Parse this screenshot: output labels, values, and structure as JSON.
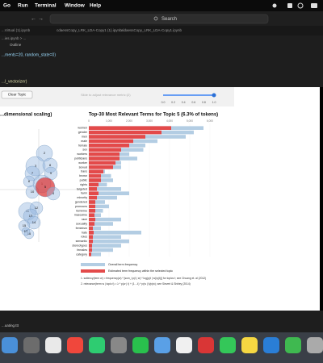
{
  "menu": [
    "Go",
    "Run",
    "Terminal",
    "Window",
    "Help"
  ],
  "search": "Search",
  "tabs": [
    "...Virtual (1).ipynb",
    "cdaessCopy_LRK_LDA-Copy1 (1).ipynb",
    "aldaessCopy_LRK_LDA-Copy1.ipynb"
  ],
  "breadcrumb": "...ies.ipynb > ...",
  "outline": "Outline",
  "code": [
    "...ments=20, random_state=0)",
    "...l_vectorizer)"
  ],
  "ldavis": {
    "clear_button": "Clear Topic",
    "slider_label": "Slide to adjust relevance metric:(2)",
    "slider_value": 1,
    "slider_ticks": [
      {
        "value": 0,
        "label": "0.0"
      },
      {
        "value": 0.2,
        "label": "0.2"
      },
      {
        "value": 0.4,
        "label": "0.4"
      },
      {
        "value": 0.6,
        "label": "0.6"
      },
      {
        "value": 0.8,
        "label": "0.8"
      },
      {
        "value": 1,
        "label": "1.0"
      }
    ],
    "left_title": "...dimensional scaling)",
    "topics": [
      2,
      3,
      8,
      7,
      9,
      6,
      1,
      10,
      5,
      4,
      11,
      12,
      13,
      14,
      15,
      16,
      17
    ]
  },
  "chart_data": {
    "type": "bar",
    "orientation": "horizontal",
    "title": "Top-30 Most Relevant Terms for Topic 5 (6.3% of tokens)",
    "categories": [
      "women",
      "gender",
      "men",
      "male",
      "female",
      "sex",
      "workers",
      "politicians",
      "worker",
      "sexual",
      "trans",
      "brown",
      "public",
      "rights",
      "targeted",
      "harm",
      "minority",
      "gendered",
      "pronouns",
      "feminine",
      "masculine",
      "race",
      "sexuality",
      "feminism",
      "hate",
      "roles",
      "semantic",
      "stereotypes",
      "females",
      "category"
    ],
    "series": [
      {
        "name": "Overall term frequency",
        "color": "#b3cde3",
        "values": [
          5680,
          5200,
          4800,
          3400,
          2800,
          2700,
          2000,
          2400,
          1600,
          1600,
          800,
          1100,
          1200,
          900,
          1600,
          2000,
          1400,
          800,
          1000,
          700,
          600,
          1600,
          1200,
          600,
          2600,
          1600,
          2000,
          1600,
          1200,
          600
        ]
      },
      {
        "name": "Estimated term frequency within the selected topic",
        "color": "#e34a4a",
        "values": [
          4080,
          3600,
          2800,
          2200,
          2000,
          1600,
          1520,
          1520,
          1320,
          1200,
          720,
          600,
          600,
          480,
          400,
          480,
          400,
          320,
          320,
          320,
          280,
          320,
          280,
          200,
          240,
          200,
          200,
          160,
          160,
          120
        ]
      }
    ],
    "xlim": [
      0,
      6000
    ],
    "xticks": [
      0,
      {
        "value": 1000,
        "label": "1,000"
      },
      {
        "value": 2000,
        "label": "2,000"
      },
      {
        "value": 3000,
        "label": "3,000"
      },
      {
        "value": 4000,
        "label": "4,000"
      },
      {
        "value": 5000,
        "label": "5,000"
      },
      {
        "value": 6000,
        "label": "6,000"
      }
    ],
    "notes": [
      "1. saliency(term w) = frequency(w) * [sum_t p(t | w) * log(p(t | w)/p(t))] for topics t; see Chuang et. al (2012)",
      "2. relevance(term w | topic t) = λ * p(w | t) + (1 - λ) * p(w | t)/p(w); see Sievert & Shirley (2014)"
    ]
  },
  "terminal": "...uating.ttt"
}
